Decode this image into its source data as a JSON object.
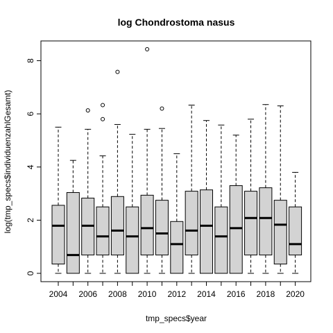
{
  "chart_data": {
    "type": "boxplot",
    "title": "log Chondrostoma nasus",
    "xlabel": "tmp_specs$year",
    "ylabel": "log(tmp_specs$individuenzahlGesamt)",
    "ylim": [
      0,
      8.5
    ],
    "y_ticks": [
      0,
      2,
      4,
      6,
      8
    ],
    "x_tick_labels": [
      "2004",
      "2006",
      "2008",
      "2010",
      "2012",
      "2014",
      "2016",
      "2018",
      "2020"
    ],
    "box_fill": "#d3d3d3",
    "boxes": [
      {
        "year": "2004",
        "min": 0.0,
        "q1": 0.35,
        "median": 1.79,
        "q3": 2.56,
        "max": 5.5,
        "outliers": []
      },
      {
        "year": "2005",
        "min": 0.0,
        "q1": 0.0,
        "median": 0.69,
        "q3": 3.04,
        "max": 4.25,
        "outliers": []
      },
      {
        "year": "2006",
        "min": 0.0,
        "q1": 0.69,
        "median": 1.79,
        "q3": 2.83,
        "max": 5.42,
        "outliers": [
          6.13
        ]
      },
      {
        "year": "2007",
        "min": 0.0,
        "q1": 0.69,
        "median": 1.39,
        "q3": 2.5,
        "max": 4.42,
        "outliers": [
          5.8,
          6.33
        ]
      },
      {
        "year": "2008",
        "min": 0.0,
        "q1": 0.69,
        "median": 1.61,
        "q3": 2.89,
        "max": 5.6,
        "outliers": [
          7.58
        ]
      },
      {
        "year": "2009",
        "min": 0.0,
        "q1": 0.0,
        "median": 1.39,
        "q3": 2.5,
        "max": 5.23,
        "outliers": []
      },
      {
        "year": "2010",
        "min": 0.0,
        "q1": 0.69,
        "median": 1.7,
        "q3": 2.94,
        "max": 5.42,
        "outliers": [
          8.43
        ]
      },
      {
        "year": "2011",
        "min": 0.0,
        "q1": 0.69,
        "median": 1.5,
        "q3": 2.75,
        "max": 5.45,
        "outliers": [
          6.2
        ]
      },
      {
        "year": "2012",
        "min": 0.0,
        "q1": 0.0,
        "median": 1.1,
        "q3": 1.95,
        "max": 4.5,
        "outliers": []
      },
      {
        "year": "2013",
        "min": 0.0,
        "q1": 0.69,
        "median": 1.61,
        "q3": 3.09,
        "max": 6.33,
        "outliers": []
      },
      {
        "year": "2014",
        "min": 0.0,
        "q1": 0.0,
        "median": 1.79,
        "q3": 3.14,
        "max": 5.75,
        "outliers": []
      },
      {
        "year": "2015",
        "min": 0.0,
        "q1": 0.0,
        "median": 1.39,
        "q3": 2.5,
        "max": 5.58,
        "outliers": []
      },
      {
        "year": "2016",
        "min": 0.0,
        "q1": 0.0,
        "median": 1.7,
        "q3": 3.3,
        "max": 5.2,
        "outliers": []
      },
      {
        "year": "2017",
        "min": 0.0,
        "q1": 0.69,
        "median": 2.08,
        "q3": 3.09,
        "max": 5.8,
        "outliers": []
      },
      {
        "year": "2018",
        "min": 0.0,
        "q1": 0.69,
        "median": 2.08,
        "q3": 3.22,
        "max": 6.35,
        "outliers": []
      },
      {
        "year": "2019",
        "min": 0.0,
        "q1": 0.35,
        "median": 1.83,
        "q3": 2.75,
        "max": 6.3,
        "outliers": []
      },
      {
        "year": "2020",
        "min": 0.0,
        "q1": 0.69,
        "median": 1.1,
        "q3": 2.5,
        "max": 3.8,
        "outliers": []
      }
    ]
  }
}
